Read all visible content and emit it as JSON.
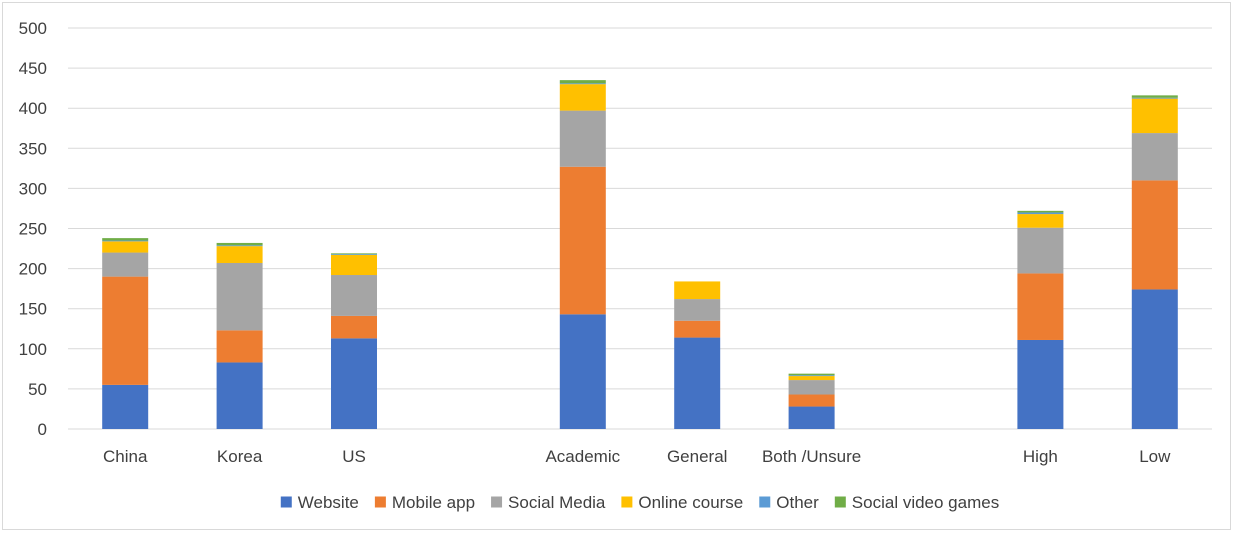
{
  "chart_data": {
    "type": "bar",
    "stacked": true,
    "title": "",
    "xlabel": "",
    "ylabel": "",
    "ylim": [
      0,
      500
    ],
    "yticks": [
      0,
      50,
      100,
      150,
      200,
      250,
      300,
      350,
      400,
      450,
      500
    ],
    "grid": true,
    "legend_position": "bottom",
    "groups": [
      [
        "China",
        "Korea",
        "US"
      ],
      [
        "Academic",
        "General",
        "Both /Unsure"
      ],
      [
        "High",
        "Low"
      ]
    ],
    "categories": [
      "China",
      "Korea",
      "US",
      "Academic",
      "General",
      "Both /Unsure",
      "High",
      "Low"
    ],
    "series": [
      {
        "name": "Website",
        "color": "#4472C4",
        "values": [
          55,
          83,
          113,
          143,
          114,
          28,
          111,
          174
        ]
      },
      {
        "name": "Mobile app",
        "color": "#ED7D31",
        "values": [
          135,
          40,
          28,
          184,
          21,
          15,
          83,
          136
        ]
      },
      {
        "name": "Social Media",
        "color": "#A5A5A5",
        "values": [
          30,
          84,
          51,
          70,
          27,
          18,
          57,
          59
        ]
      },
      {
        "name": "Online course",
        "color": "#FFC000",
        "values": [
          14,
          21,
          25,
          33,
          22,
          5,
          17,
          43
        ]
      },
      {
        "name": "Other",
        "color": "#5B9BD5",
        "values": [
          1,
          1,
          1,
          1,
          0,
          1,
          2,
          1
        ]
      },
      {
        "name": "Social video games",
        "color": "#70AD47",
        "values": [
          3,
          3,
          1,
          4,
          0,
          2,
          2,
          3
        ]
      }
    ]
  }
}
